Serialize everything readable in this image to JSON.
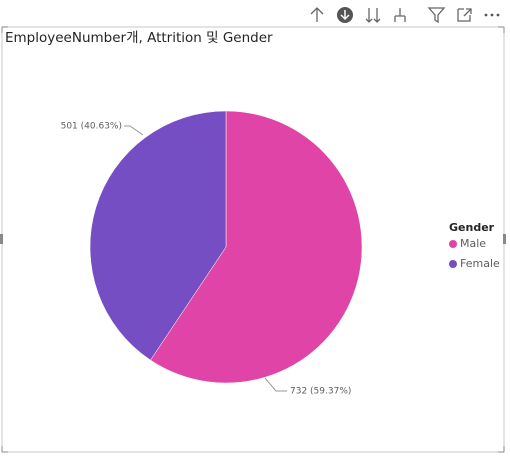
{
  "chart_data": {
    "type": "pie",
    "title": "EmployeeNumber개, Attrition 및 Gender",
    "legend_title": "Gender",
    "categories": [
      "Male",
      "Female"
    ],
    "values": [
      732,
      501
    ],
    "value_labels": [
      "732 (59.37%)",
      "501 (40.63%)"
    ],
    "colors": [
      "#e044a7",
      "#744ec2"
    ],
    "legend": "right"
  }
}
